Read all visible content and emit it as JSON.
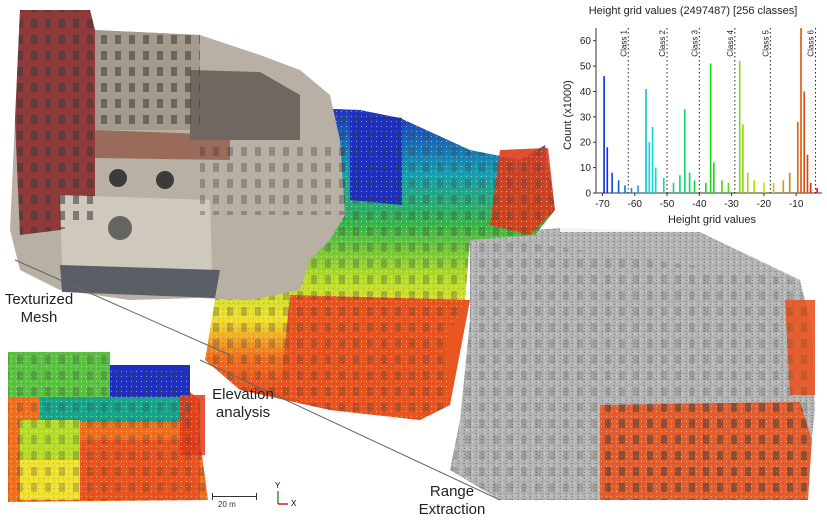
{
  "labels": {
    "texturized_mesh": "Texturized\nMesh",
    "elevation_analysis": "Elevation\nanalysis",
    "range_extraction": "Range\nExtraction"
  },
  "scale": {
    "label": "20 m"
  },
  "axes_icon": {
    "y": "Y",
    "x": "X"
  },
  "colors": {
    "brick_red": "#8e3a3a",
    "stone": "#b8b0a4",
    "roof": "#9a6a5a",
    "blue": "#1f2fbf",
    "green": "#39b54a",
    "yellow": "#e8e63a",
    "orange": "#f07020",
    "red": "#e03a1a",
    "gray_points": "#a8a8a8"
  },
  "chart_data": {
    "type": "bar",
    "title": "Height grid values (2497487) [256 classes]",
    "xlabel": "Height grid values",
    "ylabel": "Count (x1000)",
    "xlim": [
      -72,
      -2
    ],
    "ylim": [
      0,
      65
    ],
    "xticks": [
      -70,
      -60,
      -50,
      -40,
      -30,
      -20,
      -10
    ],
    "yticks": [
      0,
      10,
      20,
      30,
      40,
      50,
      60
    ],
    "class_lines": [
      {
        "x": -62,
        "label": "Class 1"
      },
      {
        "x": -50,
        "label": "Class 2"
      },
      {
        "x": -40,
        "label": "Class 3"
      },
      {
        "x": -29,
        "label": "Class 4"
      },
      {
        "x": -18,
        "label": "Class 5"
      },
      {
        "x": -4,
        "label": "Class 6"
      }
    ],
    "peaks": [
      {
        "x": -69.5,
        "y": 46
      },
      {
        "x": -68.5,
        "y": 18
      },
      {
        "x": -67,
        "y": 8
      },
      {
        "x": -65,
        "y": 5
      },
      {
        "x": -63,
        "y": 3
      },
      {
        "x": -61,
        "y": 2
      },
      {
        "x": -59,
        "y": 3
      },
      {
        "x": -56.5,
        "y": 41
      },
      {
        "x": -55.5,
        "y": 20
      },
      {
        "x": -54.5,
        "y": 26
      },
      {
        "x": -53.5,
        "y": 10
      },
      {
        "x": -51,
        "y": 6
      },
      {
        "x": -48,
        "y": 4
      },
      {
        "x": -46,
        "y": 7
      },
      {
        "x": -44.5,
        "y": 33
      },
      {
        "x": -43,
        "y": 8
      },
      {
        "x": -41.5,
        "y": 5
      },
      {
        "x": -38,
        "y": 4
      },
      {
        "x": -36.5,
        "y": 51
      },
      {
        "x": -35.5,
        "y": 12
      },
      {
        "x": -33,
        "y": 5
      },
      {
        "x": -31,
        "y": 4
      },
      {
        "x": -27.5,
        "y": 52
      },
      {
        "x": -26.5,
        "y": 27
      },
      {
        "x": -25,
        "y": 8
      },
      {
        "x": -23,
        "y": 5
      },
      {
        "x": -20,
        "y": 4
      },
      {
        "x": -17,
        "y": 4
      },
      {
        "x": -14,
        "y": 5
      },
      {
        "x": -12,
        "y": 8
      },
      {
        "x": -9.5,
        "y": 28
      },
      {
        "x": -8.5,
        "y": 65
      },
      {
        "x": -7.5,
        "y": 40
      },
      {
        "x": -6.5,
        "y": 15
      },
      {
        "x": -5.5,
        "y": 4
      },
      {
        "x": -3.5,
        "y": 2
      }
    ]
  }
}
